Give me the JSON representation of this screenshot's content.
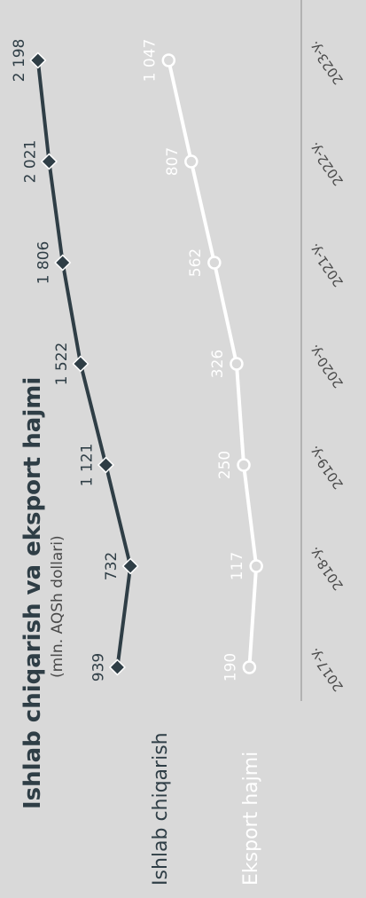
{
  "chart_data": {
    "type": "line",
    "title": "Ishlab chiqarish va eksport hajmi",
    "subtitle": "(mln. AQSh dollari)",
    "categories": [
      "2017-y.",
      "2018-y.",
      "2019-y.",
      "2020-y.",
      "2021-y.",
      "2022-y.",
      "2023-y."
    ],
    "series": [
      {
        "name": "Ishlab chiqarish",
        "values": [
          939,
          732,
          1121,
          1522,
          1806,
          2021,
          2198
        ],
        "labels": [
          "939",
          "732",
          "1 121",
          "1 522",
          "1 806",
          "2 021",
          "2 198"
        ],
        "color": "#2f3e46",
        "marker": "diamond"
      },
      {
        "name": "Eksport hajmi",
        "values": [
          190,
          117,
          250,
          326,
          562,
          807,
          1047
        ],
        "labels": [
          "190",
          "117",
          "250",
          "326",
          "562",
          "807",
          "1 047"
        ],
        "color": "#ffffff",
        "marker": "circle"
      }
    ],
    "grid": false,
    "legend": "bottom-left",
    "orientation": "rotated-90-ccw"
  }
}
